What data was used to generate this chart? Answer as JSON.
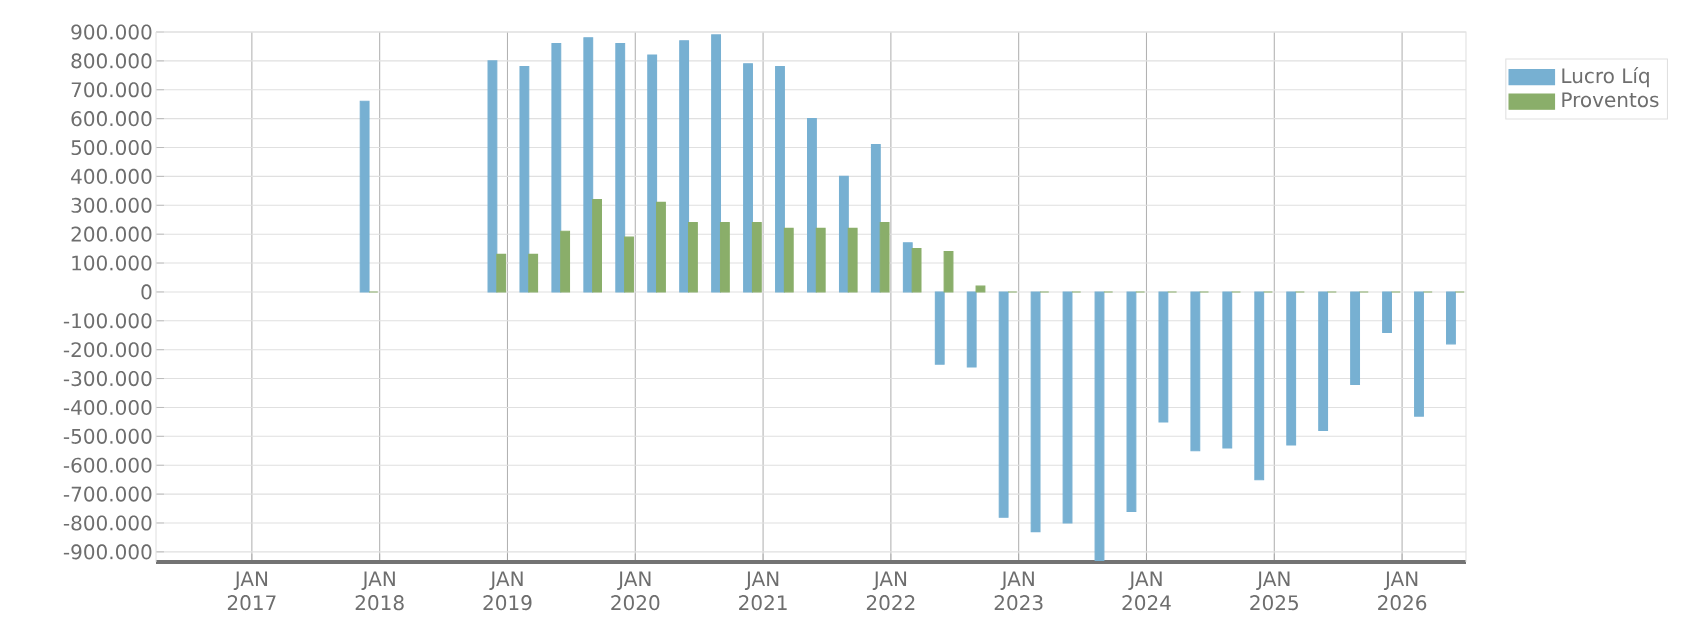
{
  "chart_data": {
    "type": "bar",
    "x": [
      "2017-12",
      "2018-03",
      "2018-06",
      "2018-09",
      "2018-12",
      "2019-03",
      "2019-06",
      "2019-09",
      "2019-12",
      "2020-03",
      "2020-06",
      "2020-09",
      "2020-12",
      "2021-03",
      "2021-06",
      "2021-09",
      "2021-12",
      "2022-03",
      "2022-06",
      "2022-09",
      "2022-12",
      "2023-03",
      "2023-06",
      "2023-09",
      "2023-12",
      "2024-03",
      "2024-06",
      "2024-09",
      "2024-12",
      "2025-03",
      "2025-06",
      "2025-09",
      "2025-12",
      "2026-03",
      "2026-06"
    ],
    "series": [
      {
        "name": "Lucro Líq",
        "color": "#77b0d2",
        "values": [
          660000,
          null,
          null,
          null,
          800000,
          780000,
          860000,
          880000,
          860000,
          820000,
          870000,
          890000,
          790000,
          780000,
          600000,
          400000,
          510000,
          170000,
          -250000,
          -260000,
          -780000,
          -830000,
          -800000,
          -930000,
          -760000,
          -450000,
          -550000,
          -540000,
          -650000,
          -530000,
          -480000,
          -320000,
          -140000,
          -430000,
          -180000
        ]
      },
      {
        "name": "Proventos",
        "color": "#8aae6a",
        "values": [
          0,
          null,
          null,
          null,
          130000,
          130000,
          210000,
          320000,
          190000,
          310000,
          240000,
          240000,
          240000,
          220000,
          220000,
          220000,
          240000,
          150000,
          140000,
          20000,
          0,
          0,
          0,
          0,
          0,
          0,
          0,
          0,
          0,
          0,
          0,
          0,
          0,
          0,
          0
        ]
      }
    ],
    "xlim": [
      "2016-04",
      "2026-07"
    ],
    "xticks": [
      {
        "value": "2017-01",
        "label": "JAN 2017"
      },
      {
        "value": "2018-01",
        "label": "JAN 2018"
      },
      {
        "value": "2019-01",
        "label": "JAN 2019"
      },
      {
        "value": "2020-01",
        "label": "JAN 2020"
      },
      {
        "value": "2021-01",
        "label": "JAN 2021"
      },
      {
        "value": "2022-01",
        "label": "JAN 2022"
      },
      {
        "value": "2023-01",
        "label": "JAN 2023"
      },
      {
        "value": "2024-01",
        "label": "JAN 2024"
      },
      {
        "value": "2025-01",
        "label": "JAN 2025"
      },
      {
        "value": "2026-01",
        "label": "JAN 2026"
      }
    ],
    "ylim": [
      -935000,
      900000
    ],
    "yticks": [
      {
        "value": 900000,
        "label": "900.000"
      },
      {
        "value": 800000,
        "label": "800.000"
      },
      {
        "value": 700000,
        "label": "700.000"
      },
      {
        "value": 600000,
        "label": "600.000"
      },
      {
        "value": 500000,
        "label": "500.000"
      },
      {
        "value": 400000,
        "label": "400.000"
      },
      {
        "value": 300000,
        "label": "300.000"
      },
      {
        "value": 200000,
        "label": "200.000"
      },
      {
        "value": 100000,
        "label": "100.000"
      },
      0,
      {
        "value": -100000,
        "label": "-100.000"
      },
      {
        "value": -200000,
        "label": "-200.000"
      },
      {
        "value": -300000,
        "label": "-300.000"
      },
      {
        "value": -400000,
        "label": "-400.000"
      },
      {
        "value": -500000,
        "label": "-500.000"
      },
      {
        "value": -600000,
        "label": "-600.000"
      },
      {
        "value": -700000,
        "label": "-700.000"
      },
      {
        "value": -800000,
        "label": "-800.000"
      },
      {
        "value": -900000,
        "label": "-900.000"
      }
    ],
    "grid": true,
    "legend": "top right"
  }
}
